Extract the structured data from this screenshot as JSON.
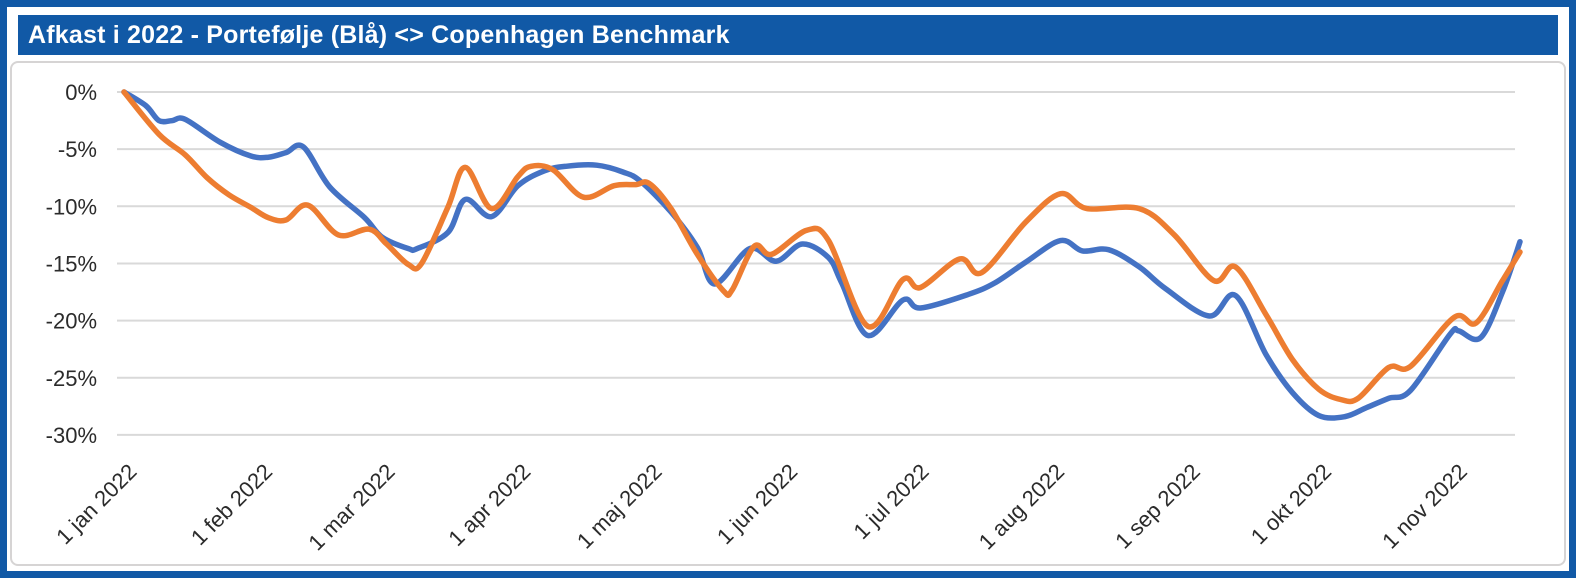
{
  "title": "Afkast i 2022 - Portefølje (Blå) <> Copenhagen Benchmark",
  "colors": {
    "frame_border": "#1159A6",
    "title_bar_bg": "#1159A6",
    "title_text": "#FFFFFF",
    "panel_border": "#D6D4D4",
    "gridline": "#D9D9D9",
    "axis_text": "#2B2B2B",
    "portfolio_blue": "#4472C4",
    "benchmark_orange": "#ED7D31"
  },
  "chart_data": {
    "type": "line",
    "title": "Afkast i 2022 - Portefølje (Blå) <> Copenhagen Benchmark",
    "xlabel": "",
    "ylabel": "",
    "grid": "horizontal-only",
    "legend_position": "none (series named in title: Portefølje = blue, Copenhagen Benchmark = orange)",
    "x_unit": "days since 1 jan 2022",
    "xlim_days": [
      0,
      319
    ],
    "ylim": [
      -30,
      0
    ],
    "y_ticks": [
      0,
      -5,
      -10,
      -15,
      -20,
      -25,
      -30
    ],
    "y_tick_labels": [
      "0%",
      "-5%",
      "-10%",
      "-15%",
      "-20%",
      "-25%",
      "-30%"
    ],
    "x_tick_days": [
      0,
      31,
      59,
      90,
      120,
      151,
      181,
      212,
      243,
      273,
      304
    ],
    "x_tick_labels": [
      "1 jan 2022",
      "1 feb 2022",
      "1 mar 2022",
      "1 apr 2022",
      "1 maj 2022",
      "1 jun 2022",
      "1 jul 2022",
      "1 aug 2022",
      "1 sep 2022",
      "1 okt 2022",
      "1 nov 2022"
    ],
    "series": [
      {
        "name": "Portefølje",
        "color": "#4472C4",
        "days": [
          0,
          5,
          8,
          11,
          14,
          22,
          29,
          33,
          37,
          41,
          47,
          55,
          59,
          65,
          67,
          74,
          78,
          84,
          90,
          96,
          101,
          108,
          114,
          118,
          125,
          131,
          135,
          143,
          149,
          155,
          161,
          164,
          170,
          178,
          182,
          193,
          199,
          206,
          214,
          219,
          225,
          232,
          238,
          248,
          254,
          261,
          267,
          273,
          279,
          284,
          289,
          294,
          303,
          305,
          310,
          315,
          319
        ],
        "values": [
          0,
          -1.2,
          -2.5,
          -2.5,
          -2.4,
          -4.4,
          -5.6,
          -5.7,
          -5.3,
          -4.8,
          -8.3,
          -11.0,
          -12.7,
          -13.7,
          -13.7,
          -12.3,
          -9.4,
          -10.9,
          -8.2,
          -6.9,
          -6.5,
          -6.4,
          -7.0,
          -7.8,
          -10.5,
          -13.6,
          -16.8,
          -13.7,
          -14.8,
          -13.3,
          -14.5,
          -16.7,
          -21.3,
          -18.2,
          -18.9,
          -17.7,
          -16.7,
          -14.9,
          -13.0,
          -13.9,
          -13.8,
          -15.3,
          -17.2,
          -19.6,
          -17.8,
          -23.0,
          -26.3,
          -28.3,
          -28.4,
          -27.6,
          -26.8,
          -26.1,
          -21.2,
          -20.9,
          -21.5,
          -17.5,
          -13.1
        ]
      },
      {
        "name": "Copenhagen Benchmark",
        "color": "#ED7D31",
        "days": [
          0,
          8,
          14,
          19,
          24,
          29,
          33,
          37,
          42,
          49,
          56,
          60,
          65,
          68,
          74,
          78,
          84,
          90,
          93,
          98,
          105,
          112,
          117,
          120,
          125,
          131,
          137,
          139,
          144,
          148,
          156,
          161,
          170,
          178,
          182,
          191,
          196,
          206,
          214,
          220,
          232,
          240,
          249,
          254,
          261,
          267,
          273,
          278,
          282,
          289,
          294,
          304,
          309,
          315,
          319
        ],
        "values": [
          0,
          -3.7,
          -5.5,
          -7.5,
          -9.0,
          -10.1,
          -11.0,
          -11.2,
          -9.9,
          -12.5,
          -12.0,
          -13.3,
          -15.1,
          -15.0,
          -10.1,
          -6.6,
          -10.2,
          -7.4,
          -6.5,
          -6.8,
          -9.2,
          -8.2,
          -8.1,
          -8.0,
          -10.2,
          -14.2,
          -17.4,
          -17.3,
          -13.5,
          -14.2,
          -12.1,
          -13.0,
          -20.5,
          -16.4,
          -17.1,
          -14.6,
          -15.8,
          -11.4,
          -8.9,
          -10.2,
          -10.2,
          -12.5,
          -16.5,
          -15.3,
          -19.5,
          -23.4,
          -26.0,
          -26.9,
          -26.8,
          -24.1,
          -24.0,
          -19.7,
          -20.2,
          -16.5,
          -14.0
        ]
      }
    ]
  }
}
